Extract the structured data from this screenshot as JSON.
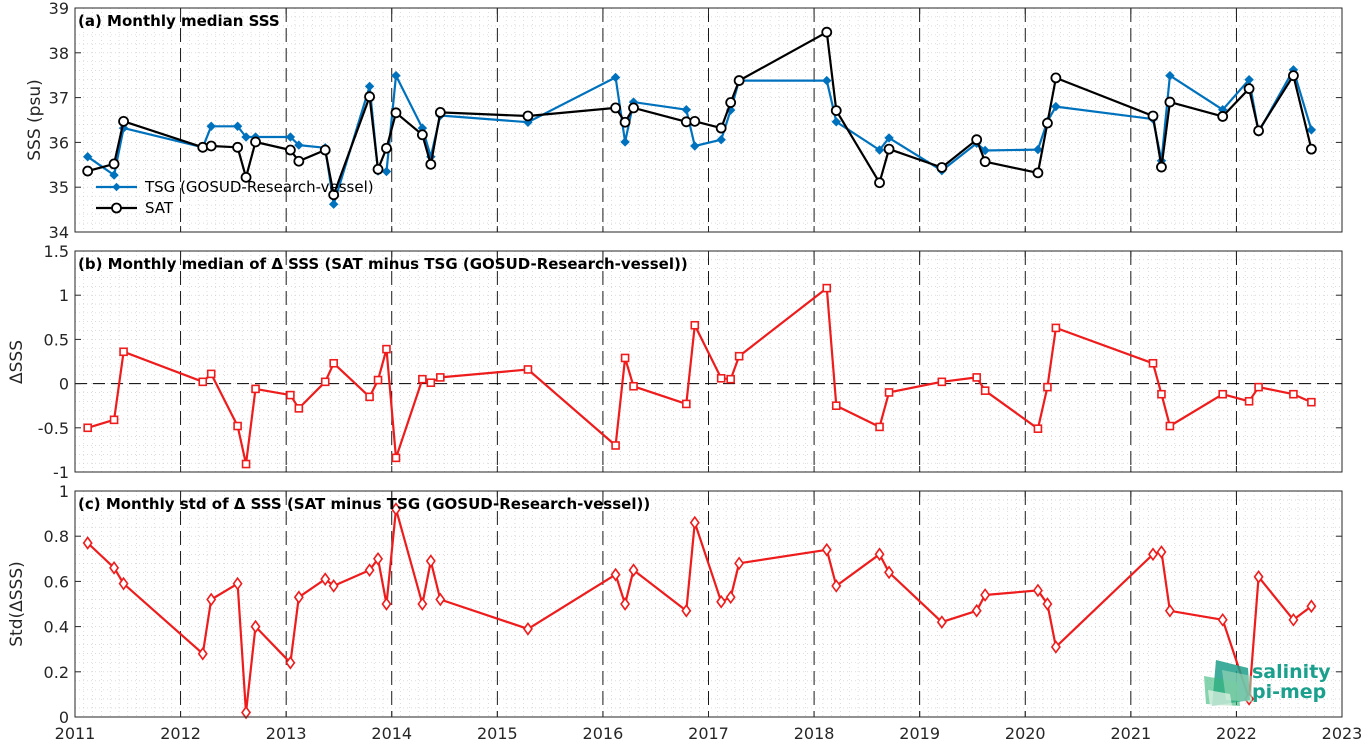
{
  "chart_data": [
    {
      "type": "line",
      "title": "(a) Monthly median SSS",
      "ylabel": "SSS (psu)",
      "xlabel": "",
      "xlim": [
        2011,
        2023
      ],
      "ylim": [
        34,
        39
      ],
      "yticks": [
        34,
        35,
        36,
        37,
        38,
        39
      ],
      "grid": "minor dotted, yearly dashed",
      "legend_position": "lower-left",
      "series": [
        {
          "name": "TSG (GOSUD-Research-vessel)",
          "color": "#0072bd",
          "marker": "diamond",
          "x": [
            2011.12,
            2011.37,
            2011.46,
            2012.21,
            2012.29,
            2012.54,
            2012.62,
            2012.71,
            2013.04,
            2013.12,
            2013.37,
            2013.45,
            2013.79,
            2013.87,
            2013.95,
            2014.04,
            2014.29,
            2014.37,
            2014.46,
            2015.29,
            2016.12,
            2016.21,
            2016.29,
            2016.79,
            2016.87,
            2017.12,
            2017.21,
            2017.29,
            2018.12,
            2018.21,
            2018.62,
            2018.71,
            2019.21,
            2019.54,
            2019.62,
            2020.12,
            2020.21,
            2020.29,
            2021.21,
            2021.29,
            2021.37,
            2021.87,
            2022.12,
            2022.21,
            2022.54,
            2022.71
          ],
          "y": [
            35.68,
            35.27,
            36.32,
            35.89,
            36.36,
            36.36,
            36.12,
            36.12,
            36.12,
            35.94,
            35.88,
            34.62,
            37.25,
            35.36,
            35.35,
            37.49,
            36.32,
            35.68,
            36.6,
            36.45,
            37.45,
            36.01,
            36.9,
            36.73,
            35.92,
            36.06,
            36.72,
            37.38,
            37.38,
            36.46,
            35.83,
            36.1,
            35.37,
            35.98,
            35.82,
            35.84,
            36.47,
            36.8,
            36.52,
            35.59,
            37.49,
            36.73,
            37.4,
            36.23,
            37.62,
            36.28
          ]
        },
        {
          "name": "SAT",
          "color": "#000000",
          "marker": "circle",
          "x": [
            2011.12,
            2011.37,
            2011.46,
            2012.21,
            2012.29,
            2012.54,
            2012.62,
            2012.71,
            2013.04,
            2013.12,
            2013.37,
            2013.45,
            2013.79,
            2013.87,
            2013.95,
            2014.04,
            2014.29,
            2014.37,
            2014.46,
            2015.29,
            2016.12,
            2016.21,
            2016.29,
            2016.79,
            2016.87,
            2017.12,
            2017.21,
            2017.29,
            2018.12,
            2018.21,
            2018.62,
            2018.71,
            2019.21,
            2019.54,
            2019.62,
            2020.12,
            2020.21,
            2020.29,
            2021.21,
            2021.29,
            2021.37,
            2021.87,
            2022.12,
            2022.21,
            2022.54,
            2022.71
          ],
          "y": [
            35.36,
            35.52,
            36.47,
            35.89,
            35.92,
            35.89,
            35.22,
            36.01,
            35.83,
            35.58,
            35.83,
            34.83,
            37.02,
            35.4,
            35.87,
            36.66,
            36.17,
            35.51,
            36.67,
            36.59,
            36.77,
            36.45,
            36.77,
            36.46,
            36.47,
            36.32,
            36.89,
            37.38,
            38.46,
            36.71,
            35.1,
            35.85,
            35.44,
            36.06,
            35.57,
            35.32,
            36.43,
            37.44,
            36.59,
            35.45,
            36.9,
            36.58,
            37.2,
            36.26,
            37.49,
            35.85
          ]
        }
      ]
    },
    {
      "type": "line",
      "title": "(b) Monthly median of Δ SSS (SAT minus TSG (GOSUD-Research-vessel))",
      "ylabel": "ΔSSS",
      "xlabel": "",
      "xlim": [
        2011,
        2023
      ],
      "ylim": [
        -1,
        1.5
      ],
      "yticks": [
        -1,
        -0.5,
        0,
        0.5,
        1,
        1.5
      ],
      "ytick_labels": [
        "-1",
        "-0.5",
        "0",
        "0.5",
        "1",
        "1.5"
      ],
      "zero_line": "dashed",
      "series": [
        {
          "name": "",
          "color": "#ee1c1c",
          "marker": "square",
          "x": [
            2011.12,
            2011.37,
            2011.46,
            2012.21,
            2012.29,
            2012.54,
            2012.62,
            2012.71,
            2013.04,
            2013.12,
            2013.37,
            2013.45,
            2013.79,
            2013.87,
            2013.95,
            2014.04,
            2014.29,
            2014.37,
            2014.46,
            2015.29,
            2016.12,
            2016.21,
            2016.29,
            2016.79,
            2016.87,
            2017.12,
            2017.21,
            2017.29,
            2018.12,
            2018.21,
            2018.62,
            2018.71,
            2019.21,
            2019.54,
            2019.62,
            2020.12,
            2020.21,
            2020.29,
            2021.21,
            2021.29,
            2021.37,
            2021.87,
            2022.12,
            2022.21,
            2022.54,
            2022.71
          ],
          "y": [
            -0.5,
            -0.41,
            0.36,
            0.02,
            0.11,
            -0.48,
            -0.91,
            -0.06,
            -0.13,
            -0.28,
            0.02,
            0.23,
            -0.15,
            0.04,
            0.39,
            -0.84,
            0.05,
            0.01,
            0.07,
            0.16,
            -0.7,
            0.29,
            -0.03,
            -0.23,
            0.66,
            0.06,
            0.05,
            0.31,
            1.08,
            -0.25,
            -0.49,
            -0.1,
            0.02,
            0.07,
            -0.08,
            -0.51,
            -0.04,
            0.63,
            0.23,
            -0.12,
            -0.48,
            -0.12,
            -0.2,
            -0.04,
            -0.12,
            -0.21
          ]
        }
      ]
    },
    {
      "type": "line",
      "title": "(c) Monthly std of Δ SSS (SAT minus TSG (GOSUD-Research-vessel))",
      "ylabel": "Std(ΔSSS)",
      "xlabel": "",
      "xlim": [
        2011,
        2023
      ],
      "ylim": [
        0,
        1
      ],
      "yticks": [
        0,
        0.2,
        0.4,
        0.6,
        0.8,
        1
      ],
      "ytick_labels": [
        "0",
        "0.2",
        "0.4",
        "0.6",
        "0.8",
        "1"
      ],
      "xticks": [
        2011,
        2012,
        2013,
        2014,
        2015,
        2016,
        2017,
        2018,
        2019,
        2020,
        2021,
        2022,
        2023
      ],
      "xtick_labels": [
        "2011",
        "2012",
        "2013",
        "2014",
        "2015",
        "2016",
        "2017",
        "2018",
        "2019",
        "2020",
        "2021",
        "2022",
        "2023"
      ],
      "series": [
        {
          "name": "",
          "color": "#ee1c1c",
          "marker": "diamond",
          "x": [
            2011.12,
            2011.37,
            2011.46,
            2012.21,
            2012.29,
            2012.54,
            2012.62,
            2012.71,
            2013.04,
            2013.12,
            2013.37,
            2013.45,
            2013.79,
            2013.87,
            2013.95,
            2014.04,
            2014.29,
            2014.37,
            2014.46,
            2015.29,
            2016.12,
            2016.21,
            2016.29,
            2016.79,
            2016.87,
            2017.12,
            2017.21,
            2017.29,
            2018.12,
            2018.21,
            2018.62,
            2018.71,
            2019.21,
            2019.54,
            2019.62,
            2020.12,
            2020.21,
            2020.29,
            2021.21,
            2021.29,
            2021.37,
            2021.87,
            2022.12,
            2022.21,
            2022.54,
            2022.71
          ],
          "y": [
            0.77,
            0.66,
            0.59,
            0.28,
            0.52,
            0.59,
            0.02,
            0.4,
            0.24,
            0.53,
            0.61,
            0.58,
            0.65,
            0.7,
            0.5,
            0.92,
            0.5,
            0.69,
            0.52,
            0.39,
            0.63,
            0.5,
            0.65,
            0.47,
            0.86,
            0.51,
            0.53,
            0.68,
            0.74,
            0.58,
            0.72,
            0.64,
            0.42,
            0.47,
            0.54,
            0.56,
            0.5,
            0.31,
            0.72,
            0.73,
            0.47,
            0.43,
            0.08,
            0.62,
            0.43,
            0.49
          ]
        }
      ]
    }
  ],
  "logo": {
    "line1": "salinity",
    "line2": "pi-mep",
    "color": "#1aa08c"
  }
}
